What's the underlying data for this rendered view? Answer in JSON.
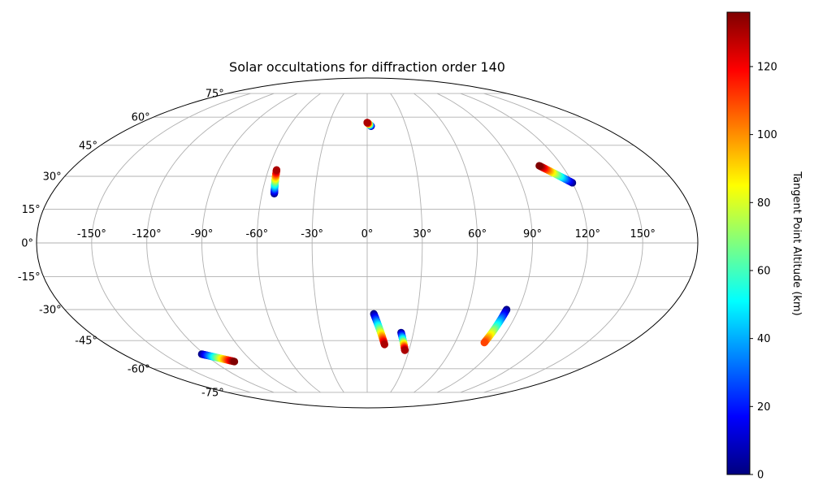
{
  "chart_data": {
    "type": "scatter",
    "projection": "mollweide",
    "title": "Solar occultations for diffraction order 140",
    "grid": true,
    "x_ticks": [
      "-150°",
      "-120°",
      "-90°",
      "-60°",
      "-30°",
      "0°",
      "30°",
      "60°",
      "90°",
      "120°",
      "150°"
    ],
    "x_tick_values": [
      -150,
      -120,
      -90,
      -60,
      -30,
      0,
      30,
      60,
      90,
      120,
      150
    ],
    "y_ticks": [
      "-75°",
      "-60°",
      "-45°",
      "-30°",
      "-15°",
      "0°",
      "15°",
      "30°",
      "45°",
      "60°",
      "75°"
    ],
    "y_tick_values": [
      -75,
      -60,
      -45,
      -30,
      -15,
      0,
      15,
      30,
      45,
      60,
      75
    ],
    "colorbar": {
      "label": "Tangent Point Altitude (km)",
      "colormap": "jet",
      "vmin": 0,
      "vmax": 136,
      "ticks": [
        "0",
        "20",
        "40",
        "60",
        "80",
        "100",
        "120"
      ],
      "tick_values": [
        0,
        20,
        40,
        60,
        80,
        100,
        120
      ]
    },
    "tracks": [
      {
        "lon_start": 3,
        "lat_start": 55,
        "lon_end": 0,
        "lat_end": 57,
        "alt_start": 0,
        "alt_end": 130
      },
      {
        "lon_start": -53,
        "lat_start": 22,
        "lon_end": -55,
        "lat_end": 33,
        "alt_start": 0,
        "alt_end": 130
      },
      {
        "lon_start": 120,
        "lat_start": 27,
        "lon_end": 106,
        "lat_end": 35,
        "alt_start": 0,
        "alt_end": 136
      },
      {
        "lon_start": 4,
        "lat_start": -32,
        "lon_end": 12,
        "lat_end": -47,
        "alt_start": 0,
        "alt_end": 130
      },
      {
        "lon_start": 22,
        "lat_start": -41,
        "lon_end": 27,
        "lat_end": -50,
        "alt_start": 0,
        "alt_end": 130
      },
      {
        "lon_start": 83,
        "lat_start": -30,
        "lon_end": 80,
        "lat_end": -46,
        "alt_start": 0,
        "alt_end": 110
      },
      {
        "lon_start": -122,
        "lat_start": -52,
        "lon_end": -104,
        "lat_end": -56,
        "alt_start": 0,
        "alt_end": 136
      }
    ]
  }
}
